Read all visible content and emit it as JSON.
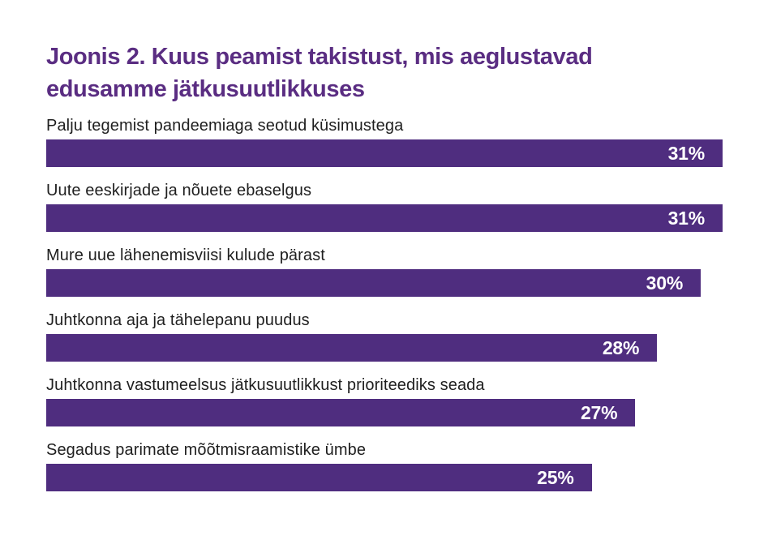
{
  "figure": {
    "title_lines": [
      "Joonis 2. Kuus peamist takistust, mis aeglustavad",
      "edusamme jätkusuutlikkuses"
    ]
  },
  "chart_data": {
    "type": "bar",
    "orientation": "horizontal",
    "title": "Joonis 2. Kuus peamist takistust, mis aeglustavad edusamme jätkusuutlikkuses",
    "categories": [
      "Palju tegemist pandeemiaga seotud küsimustega",
      "Uute eeskirjade ja nõuete ebaselgus",
      "Mure uue lähenemisviisi kulude pärast",
      "Juhtkonna aja ja tähelepanu puudus",
      "Juhtkonna vastumeelsus jätkusuutlikkust prioriteediks seada",
      "Segadus parimate mõõtmisraamistike ümbe"
    ],
    "values": [
      31,
      31,
      30,
      28,
      27,
      25
    ],
    "value_labels": [
      "31%",
      "31%",
      "30%",
      "28%",
      "27%",
      "25%"
    ],
    "unit": "%",
    "xlim": [
      0,
      31
    ],
    "scale_max": 31,
    "grid": false,
    "legend": false,
    "value_label_position": "inside-end",
    "colors": {
      "bar": "#4F2D7F",
      "title": "#5A2D82",
      "label_text": "#1F1F1F",
      "value_text": "#FFFFFF",
      "background": "#FFFFFF"
    }
  }
}
